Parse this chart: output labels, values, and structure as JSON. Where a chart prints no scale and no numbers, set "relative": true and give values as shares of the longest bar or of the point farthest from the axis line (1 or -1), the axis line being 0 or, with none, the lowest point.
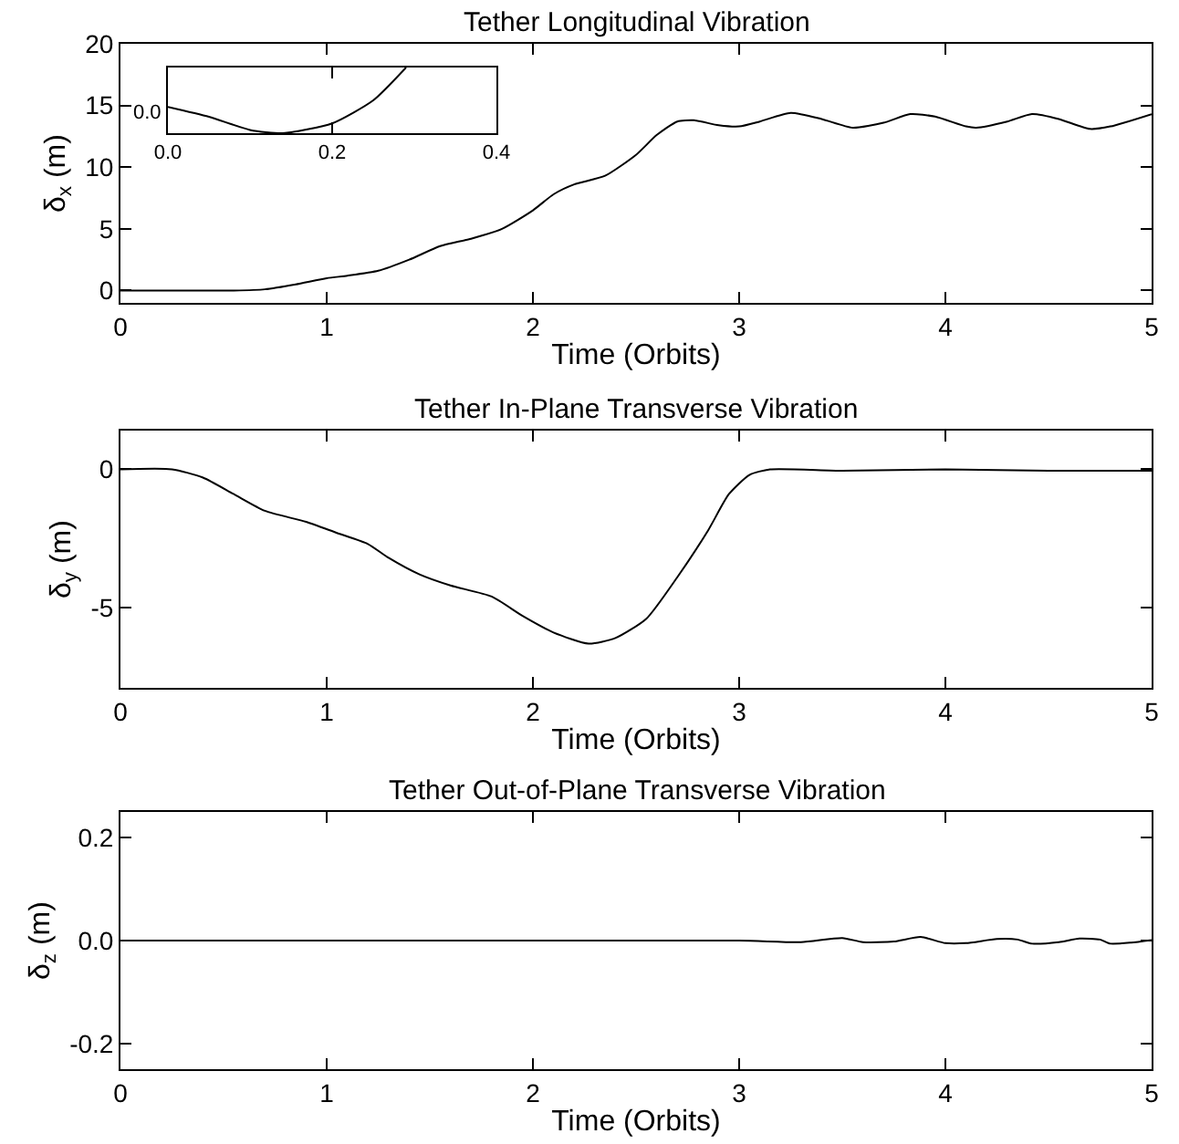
{
  "chart_data": [
    {
      "type": "line",
      "title": "Tether Longitudinal Vibration",
      "xlabel": "Time (Orbits)",
      "ylabel": "δ$_{x}$ (m)",
      "xlim": [
        0,
        5
      ],
      "xticks": [
        0,
        1,
        2,
        3,
        4,
        5
      ],
      "ylim": [
        -1,
        20
      ],
      "yticks": [
        0,
        5,
        10,
        15,
        20
      ],
      "x": [
        0,
        0.3,
        0.55,
        0.7,
        0.85,
        1.0,
        1.1,
        1.25,
        1.4,
        1.55,
        1.7,
        1.85,
        2.0,
        2.1,
        2.2,
        2.35,
        2.5,
        2.6,
        2.7,
        2.78,
        2.9,
        3.0,
        3.1,
        3.25,
        3.4,
        3.55,
        3.7,
        3.83,
        3.95,
        4.1,
        4.15,
        4.3,
        4.42,
        4.55,
        4.7,
        4.8,
        5.0
      ],
      "series": [
        {
          "color": "#000000",
          "values": [
            0,
            0,
            0,
            0.1,
            0.5,
            1.0,
            1.2,
            1.6,
            2.5,
            3.6,
            4.2,
            5.0,
            6.5,
            7.8,
            8.6,
            9.3,
            11,
            12.6,
            13.7,
            13.8,
            13.4,
            13.3,
            13.7,
            14.4,
            13.9,
            13.2,
            13.6,
            14.3,
            14.1,
            13.3,
            13.2,
            13.7,
            14.3,
            13.9,
            13.1,
            13.3,
            14.3
          ]
        }
      ]
    },
    {
      "type": "line",
      "relative": true,
      "xlim": [
        0,
        0.4
      ],
      "xticks": [
        {
          "value": 0,
          "label": "0.0"
        },
        0.2,
        0.4
      ],
      "annotations": [
        "0.0"
      ],
      "x": [
        0,
        0.05,
        0.1,
        0.14,
        0.2,
        0.25,
        0.29
      ],
      "series": [
        {
          "color": "#000000",
          "values": [
            0.4,
            0.25,
            0.05,
            0,
            0.15,
            0.5,
            1
          ]
        }
      ]
    },
    {
      "type": "line",
      "title": "Tether In-Plane Transverse Vibration",
      "xlabel": "Time (Orbits)",
      "ylabel": "δ$_{y}$ (m)",
      "xlim": [
        0,
        5
      ],
      "xticks": [
        0,
        1,
        2,
        3,
        4,
        5
      ],
      "ylim": [
        -7.9,
        1.4
      ],
      "yticks": [
        -5,
        0
      ],
      "x": [
        0,
        0.25,
        0.4,
        0.55,
        0.7,
        0.9,
        1.05,
        1.2,
        1.3,
        1.45,
        1.6,
        1.8,
        1.95,
        2.1,
        2.27,
        2.4,
        2.55,
        2.7,
        2.85,
        2.95,
        3.05,
        3.15,
        3.5,
        4.0,
        4.5,
        5.0
      ],
      "series": [
        {
          "color": "#000000",
          "values": [
            0,
            0,
            -0.3,
            -0.9,
            -1.5,
            -1.9,
            -2.3,
            -2.7,
            -3.2,
            -3.8,
            -4.2,
            -4.6,
            -5.3,
            -5.9,
            -6.3,
            -6.1,
            -5.4,
            -3.9,
            -2.2,
            -0.9,
            -0.2,
            0,
            -0.05,
            0,
            -0.05,
            -0.05
          ]
        }
      ]
    },
    {
      "type": "line",
      "title": "Tether Out-of-Plane Transverse Vibration",
      "xlabel": "Time (Orbits)",
      "ylabel": "δ$_{z}$ (m)",
      "xlim": [
        0,
        5
      ],
      "xticks": [
        0,
        1,
        2,
        3,
        4,
        5
      ],
      "ylim": [
        -0.25,
        0.25
      ],
      "yticks": [
        {
          "value": -0.2,
          "label": "-0.2"
        },
        {
          "value": 0,
          "label": "0.0"
        },
        0.2
      ],
      "x": [
        0,
        3.0,
        3.3,
        3.5,
        3.6,
        3.75,
        3.88,
        4.0,
        4.1,
        4.25,
        4.35,
        4.42,
        4.55,
        4.65,
        4.75,
        4.8,
        4.9,
        5.0
      ],
      "series": [
        {
          "color": "#000000",
          "values": [
            0,
            0,
            -0.003,
            0.005,
            -0.003,
            -0.002,
            0.007,
            -0.005,
            -0.005,
            0.003,
            0.002,
            -0.006,
            -0.003,
            0.004,
            0.002,
            -0.006,
            -0.004,
            0.001
          ]
        }
      ]
    }
  ]
}
